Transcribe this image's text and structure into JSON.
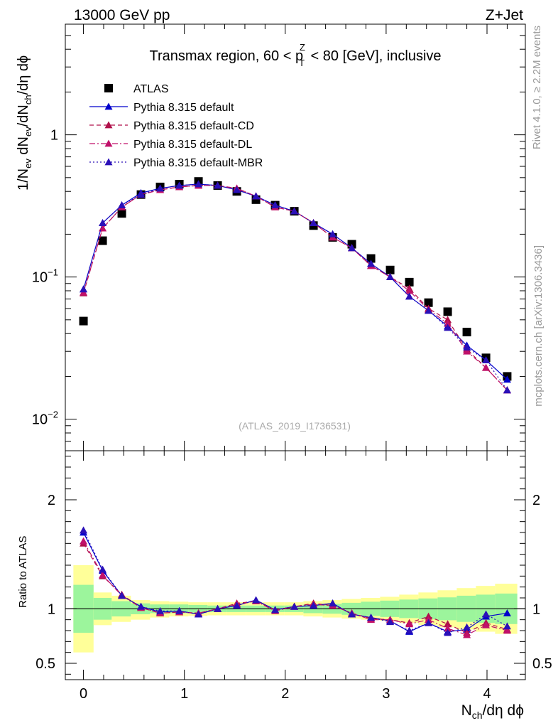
{
  "header": {
    "left": "13000 GeV pp",
    "right": "Z+Jet"
  },
  "side_labels": {
    "rivet": "Rivet 4.1.0, ≥ 2.2M events",
    "mcplots": "mcplots.cern.ch [arXiv:1306.3436]"
  },
  "chart_data": [
    {
      "type": "scatter",
      "panel": "main",
      "title_parts": {
        "before": "Transmax region, 60 < p",
        "sub": "T",
        "sup": "Z",
        "after": " < 80 [GeV], inclusive"
      },
      "ylabel_parts": [
        "1/N",
        "ev",
        " dN",
        "ev",
        "/dN",
        "ch",
        "/dη dϕ"
      ],
      "yscale": "log",
      "ylim": [
        0.006,
        6.0
      ],
      "xlim": [
        -0.18,
        4.38
      ],
      "yticks": [
        {
          "value": 0.01,
          "base": "10",
          "exp": "−2"
        },
        {
          "value": 0.1,
          "base": "10",
          "exp": "−1"
        },
        {
          "value": 1.0,
          "label": "1"
        }
      ],
      "watermark": "(ATLAS_2019_I1736531)",
      "x": [
        0.0,
        0.19,
        0.38,
        0.57,
        0.76,
        0.95,
        1.14,
        1.33,
        1.52,
        1.71,
        1.9,
        2.09,
        2.28,
        2.47,
        2.66,
        2.85,
        3.04,
        3.23,
        3.42,
        3.61,
        3.8,
        3.99,
        4.2
      ],
      "series": [
        {
          "name": "ATLAS",
          "style": "data",
          "values": [
            0.049,
            0.18,
            0.28,
            0.38,
            0.43,
            0.45,
            0.47,
            0.44,
            0.4,
            0.35,
            0.32,
            0.29,
            0.23,
            0.19,
            0.17,
            0.135,
            0.112,
            0.092,
            0.066,
            0.057,
            0.041,
            0.027,
            0.02
          ]
        },
        {
          "name": "Pythia 8.315 default",
          "style": "solid",
          "color": "#0000cc",
          "values": [
            0.082,
            0.24,
            0.32,
            0.39,
            0.42,
            0.44,
            0.45,
            0.44,
            0.41,
            0.37,
            0.32,
            0.29,
            0.24,
            0.2,
            0.16,
            0.124,
            0.1,
            0.073,
            0.058,
            0.045,
            0.033,
            0.026,
            0.019
          ]
        },
        {
          "name": "Pythia 8.315 default-CD",
          "style": "dashed",
          "color": "#b0104a",
          "values": [
            0.077,
            0.22,
            0.31,
            0.38,
            0.41,
            0.43,
            0.44,
            0.44,
            0.42,
            0.37,
            0.31,
            0.29,
            0.24,
            0.19,
            0.16,
            0.12,
            0.1,
            0.083,
            0.06,
            0.05,
            0.031,
            0.023,
            0.016
          ]
        },
        {
          "name": "Pythia 8.315 default-DL",
          "style": "dashdot",
          "color": "#c0106a",
          "values": [
            0.078,
            0.22,
            0.31,
            0.38,
            0.41,
            0.43,
            0.44,
            0.44,
            0.42,
            0.37,
            0.31,
            0.29,
            0.24,
            0.19,
            0.16,
            0.12,
            0.1,
            0.08,
            0.059,
            0.047,
            0.03,
            0.023,
            0.016
          ]
        },
        {
          "name": "Pythia 8.315 default-MBR",
          "style": "dotted",
          "color": "#2a10b8",
          "values": [
            0.082,
            0.24,
            0.32,
            0.38,
            0.42,
            0.44,
            0.45,
            0.44,
            0.41,
            0.37,
            0.32,
            0.29,
            0.24,
            0.2,
            0.16,
            0.124,
            0.1,
            0.073,
            0.058,
            0.044,
            0.032,
            0.026,
            0.016
          ]
        }
      ]
    },
    {
      "type": "scatter",
      "panel": "ratio",
      "ylabel": "Ratio to ATLAS",
      "ylim": [
        0.35,
        2.45
      ],
      "xlim": [
        -0.18,
        4.38
      ],
      "xlabel_parts": [
        "N",
        "ch",
        "/dη dϕ"
      ],
      "yticks": [
        {
          "value": 0.5,
          "label": "0.5"
        },
        {
          "value": 1.0,
          "label": "1"
        },
        {
          "value": 2.0,
          "label": "2"
        }
      ],
      "xticks": [
        {
          "value": 0,
          "label": "0"
        },
        {
          "value": 1,
          "label": "1"
        },
        {
          "value": 2,
          "label": "2"
        },
        {
          "value": 3,
          "label": "3"
        },
        {
          "value": 4,
          "label": "4"
        }
      ],
      "x": [
        0.0,
        0.19,
        0.38,
        0.57,
        0.76,
        0.95,
        1.14,
        1.33,
        1.52,
        1.71,
        1.9,
        2.09,
        2.28,
        2.47,
        2.66,
        2.85,
        3.04,
        3.23,
        3.42,
        3.61,
        3.8,
        3.99,
        4.2
      ],
      "bands": {
        "edges": [
          -0.1,
          0.1,
          0.28,
          0.47,
          0.66,
          0.85,
          1.04,
          1.23,
          1.42,
          1.61,
          1.8,
          1.99,
          2.18,
          2.37,
          2.56,
          2.75,
          2.94,
          3.13,
          3.32,
          3.51,
          3.7,
          3.89,
          4.08,
          4.3
        ],
        "inner_lo": [
          0.78,
          0.9,
          0.93,
          0.95,
          0.96,
          0.96,
          0.965,
          0.97,
          0.97,
          0.97,
          0.97,
          0.97,
          0.96,
          0.955,
          0.945,
          0.935,
          0.925,
          0.915,
          0.905,
          0.895,
          0.88,
          0.87,
          0.86
        ],
        "inner_hi": [
          1.22,
          1.1,
          1.07,
          1.05,
          1.04,
          1.04,
          1.035,
          1.03,
          1.03,
          1.03,
          1.03,
          1.03,
          1.04,
          1.045,
          1.055,
          1.065,
          1.075,
          1.085,
          1.095,
          1.105,
          1.12,
          1.13,
          1.14
        ],
        "outer_lo": [
          0.6,
          0.85,
          0.88,
          0.9,
          0.92,
          0.93,
          0.935,
          0.94,
          0.94,
          0.94,
          0.94,
          0.94,
          0.93,
          0.92,
          0.91,
          0.9,
          0.89,
          0.87,
          0.85,
          0.83,
          0.81,
          0.79,
          0.77
        ],
        "outer_hi": [
          1.4,
          1.15,
          1.12,
          1.08,
          1.07,
          1.065,
          1.06,
          1.06,
          1.06,
          1.06,
          1.06,
          1.06,
          1.07,
          1.08,
          1.09,
          1.1,
          1.11,
          1.13,
          1.15,
          1.17,
          1.19,
          1.21,
          1.23
        ],
        "inner_color": "#9cf59c",
        "outer_color": "#ffff99"
      },
      "series": [
        {
          "name": "Pythia 8.315 default",
          "style": "solid",
          "color": "#0000cc",
          "values": [
            1.7,
            1.35,
            1.12,
            1.02,
            0.97,
            0.98,
            0.95,
            1.0,
            1.03,
            1.08,
            0.99,
            1.02,
            1.03,
            1.05,
            0.95,
            0.92,
            0.89,
            0.79,
            0.87,
            0.79,
            0.81,
            0.93,
            0.96
          ]
        },
        {
          "name": "Pythia 8.315 default-CD",
          "style": "dashed",
          "color": "#b0104a",
          "values": [
            1.6,
            1.3,
            1.13,
            1.01,
            0.96,
            0.97,
            0.96,
            1.0,
            1.05,
            1.07,
            0.99,
            1.02,
            1.05,
            1.03,
            0.96,
            0.91,
            0.9,
            0.87,
            0.93,
            0.86,
            0.78,
            0.87,
            0.81
          ]
        },
        {
          "name": "Pythia 8.315 default-DL",
          "style": "dashdot",
          "color": "#c0106a",
          "values": [
            1.62,
            1.31,
            1.12,
            1.01,
            0.96,
            0.97,
            0.96,
            1.0,
            1.04,
            1.07,
            0.98,
            1.02,
            1.04,
            1.03,
            0.96,
            0.9,
            0.9,
            0.86,
            0.9,
            0.82,
            0.76,
            0.85,
            0.8
          ]
        },
        {
          "name": "Pythia 8.315 default-MBR",
          "style": "dotted",
          "color": "#2a10b8",
          "values": [
            1.72,
            1.36,
            1.12,
            1.02,
            0.98,
            0.98,
            0.95,
            1.0,
            1.03,
            1.08,
            0.99,
            1.02,
            1.03,
            1.05,
            0.95,
            0.92,
            0.88,
            0.8,
            0.87,
            0.78,
            0.83,
            0.95,
            0.84
          ]
        }
      ]
    }
  ]
}
